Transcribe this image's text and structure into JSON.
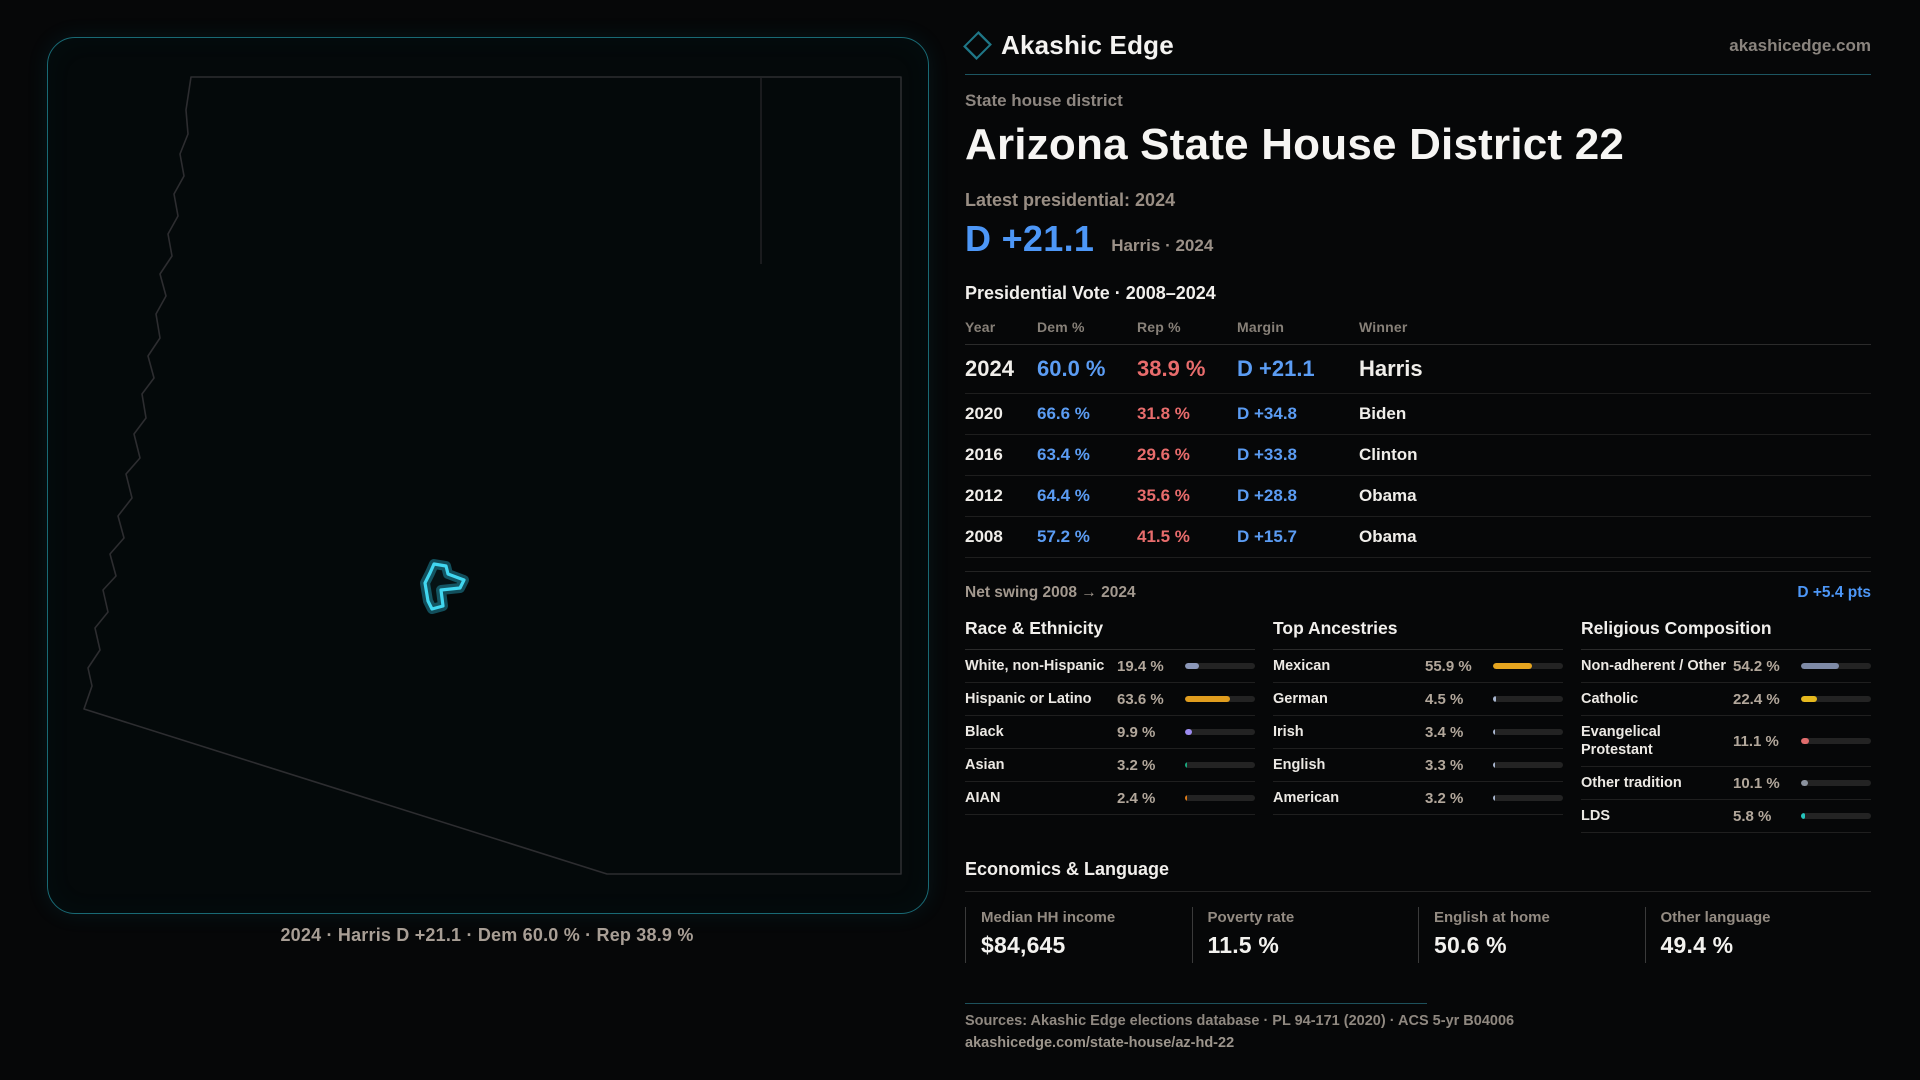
{
  "brand": {
    "name": "Akashic Edge",
    "site": "akashicedge.com"
  },
  "map": {
    "caption": "2024 · Harris D +21.1 · Dem 60.0 % · Rep 38.9 %"
  },
  "header": {
    "kicker": "State house district",
    "title": "Arizona State House District 22"
  },
  "latest": {
    "label": "Latest presidential: 2024",
    "margin": "D +21.1",
    "sub": "Harris · 2024"
  },
  "table": {
    "title": "Presidential Vote · 2008–2024",
    "columns": [
      "Year",
      "Dem %",
      "Rep %",
      "Margin",
      "Winner"
    ],
    "rows": [
      {
        "year": "2024",
        "dem": "60.0 %",
        "rep": "38.9 %",
        "margin": "D +21.1",
        "winner": "Harris"
      },
      {
        "year": "2020",
        "dem": "66.6 %",
        "rep": "31.8 %",
        "margin": "D +34.8",
        "winner": "Biden"
      },
      {
        "year": "2016",
        "dem": "63.4 %",
        "rep": "29.6 %",
        "margin": "D +33.8",
        "winner": "Clinton"
      },
      {
        "year": "2012",
        "dem": "64.4 %",
        "rep": "35.6 %",
        "margin": "D +28.8",
        "winner": "Obama"
      },
      {
        "year": "2008",
        "dem": "57.2 %",
        "rep": "41.5 %",
        "margin": "D +15.7",
        "winner": "Obama"
      }
    ],
    "swing_label": "Net swing 2008 → 2024",
    "swing_value": "D +5.4 pts"
  },
  "demographics": [
    {
      "title": "Race & Ethnicity",
      "rows": [
        {
          "label": "White, non-Hispanic",
          "value": "19.4 %",
          "pct": 19.4,
          "color": "#8b97b8"
        },
        {
          "label": "Hispanic or Latino",
          "value": "63.6 %",
          "pct": 63.6,
          "color": "#e09d1e"
        },
        {
          "label": "Black",
          "value": "9.9 %",
          "pct": 9.9,
          "color": "#9c8bf0"
        },
        {
          "label": "Asian",
          "value": "3.2 %",
          "pct": 3.2,
          "color": "#19a87e"
        },
        {
          "label": "AIAN",
          "value": "2.4 %",
          "pct": 2.4,
          "color": "#e07c17"
        }
      ]
    },
    {
      "title": "Top Ancestries",
      "rows": [
        {
          "label": "Mexican",
          "value": "55.9 %",
          "pct": 55.9,
          "color": "#e6a51f"
        },
        {
          "label": "German",
          "value": "4.5 %",
          "pct": 4.5,
          "color": "#a8b6cf"
        },
        {
          "label": "Irish",
          "value": "3.4 %",
          "pct": 3.4,
          "color": "#a8b6cf"
        },
        {
          "label": "English",
          "value": "3.3 %",
          "pct": 3.3,
          "color": "#a8b6cf"
        },
        {
          "label": "American",
          "value": "3.2 %",
          "pct": 3.2,
          "color": "#a8b6cf"
        }
      ]
    },
    {
      "title": "Religious Composition",
      "rows": [
        {
          "label": "Non-adherent / Other",
          "value": "54.2 %",
          "pct": 54.2,
          "color": "#7e8aa6"
        },
        {
          "label": "Catholic",
          "value": "22.4 %",
          "pct": 22.4,
          "color": "#e6b91e"
        },
        {
          "label": "Evangelical Protestant",
          "value": "11.1 %",
          "pct": 11.1,
          "color": "#e06c6c"
        },
        {
          "label": "Other tradition",
          "value": "10.1 %",
          "pct": 10.1,
          "color": "#8b929e"
        },
        {
          "label": "LDS",
          "value": "5.8 %",
          "pct": 5.8,
          "color": "#25c5bd"
        }
      ]
    }
  ],
  "economics": {
    "title": "Economics & Language",
    "stats": [
      {
        "label": "Median HH income",
        "value": "$84,645"
      },
      {
        "label": "Poverty rate",
        "value": "11.5 %"
      },
      {
        "label": "English at home",
        "value": "50.6 %"
      },
      {
        "label": "Other language",
        "value": "49.4 %"
      }
    ]
  },
  "footer": {
    "sources": "Sources: Akashic Edge elections database · PL 94-171 (2020) · ACS 5-yr B04006",
    "url": "akashicedge.com/state-house/az-hd-22"
  },
  "colors": {
    "dem_blue": "#5b9cf3",
    "accent_blue": "#4d97f7",
    "rep_red": "#e86c6c",
    "district_cyan": "#41d7f0",
    "panel_teal": "#196974"
  },
  "chart_data": [
    {
      "type": "table",
      "title": "Presidential Vote · 2008–2024",
      "columns": [
        "Year",
        "Dem %",
        "Rep %",
        "Margin",
        "Winner"
      ],
      "rows": [
        [
          2024,
          60.0,
          38.9,
          "D +21.1",
          "Harris"
        ],
        [
          2020,
          66.6,
          31.8,
          "D +34.8",
          "Biden"
        ],
        [
          2016,
          63.4,
          29.6,
          "D +33.8",
          "Clinton"
        ],
        [
          2012,
          64.4,
          35.6,
          "D +28.8",
          "Obama"
        ],
        [
          2008,
          57.2,
          41.5,
          "D +15.7",
          "Obama"
        ]
      ],
      "net_swing": "D +5.4 pts"
    },
    {
      "type": "bar",
      "title": "Race & Ethnicity",
      "categories": [
        "White, non-Hispanic",
        "Hispanic or Latino",
        "Black",
        "Asian",
        "AIAN"
      ],
      "values": [
        19.4,
        63.6,
        9.9,
        3.2,
        2.4
      ],
      "xlabel": "",
      "ylabel": "",
      "xlim": [
        0,
        100
      ]
    },
    {
      "type": "bar",
      "title": "Top Ancestries",
      "categories": [
        "Mexican",
        "German",
        "Irish",
        "English",
        "American"
      ],
      "values": [
        55.9,
        4.5,
        3.4,
        3.3,
        3.2
      ],
      "xlabel": "",
      "ylabel": "",
      "xlim": [
        0,
        100
      ]
    },
    {
      "type": "bar",
      "title": "Religious Composition",
      "categories": [
        "Non-adherent / Other",
        "Catholic",
        "Evangelical Protestant",
        "Other tradition",
        "LDS"
      ],
      "values": [
        54.2,
        22.4,
        11.1,
        10.1,
        5.8
      ],
      "xlabel": "",
      "ylabel": "",
      "xlim": [
        0,
        100
      ]
    }
  ]
}
